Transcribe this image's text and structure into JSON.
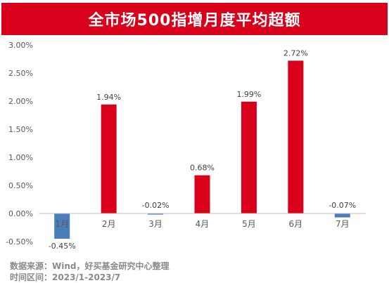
{
  "chart_data": {
    "type": "bar",
    "title": "全市场500指增月度平均超额",
    "categories": [
      "1月",
      "2月",
      "3月",
      "4月",
      "5月",
      "6月",
      "7月"
    ],
    "values": [
      -0.45,
      1.94,
      -0.02,
      0.68,
      1.99,
      2.72,
      -0.07
    ],
    "data_labels": [
      "-0.45%",
      "1.94%",
      "-0.02%",
      "0.68%",
      "1.99%",
      "2.72%",
      "-0.07%"
    ],
    "y_ticks": [
      -0.5,
      0.0,
      0.5,
      1.0,
      1.5,
      2.0,
      2.5,
      3.0
    ],
    "y_tick_labels": [
      "-0.50%",
      "0.00%",
      "0.50%",
      "1.00%",
      "1.50%",
      "2.00%",
      "2.50%",
      "3.00%"
    ],
    "ylim": [
      -0.5,
      3.0
    ],
    "grid": false,
    "colors": {
      "positive": "#d9001b",
      "negative": "#4a7ebb"
    }
  },
  "source": {
    "line1_label": "数据来源：",
    "line1_value": "Wind，好买基金研究中心整理",
    "line2_label": "时间区间：",
    "line2_value": "2023/1-2023/7"
  }
}
